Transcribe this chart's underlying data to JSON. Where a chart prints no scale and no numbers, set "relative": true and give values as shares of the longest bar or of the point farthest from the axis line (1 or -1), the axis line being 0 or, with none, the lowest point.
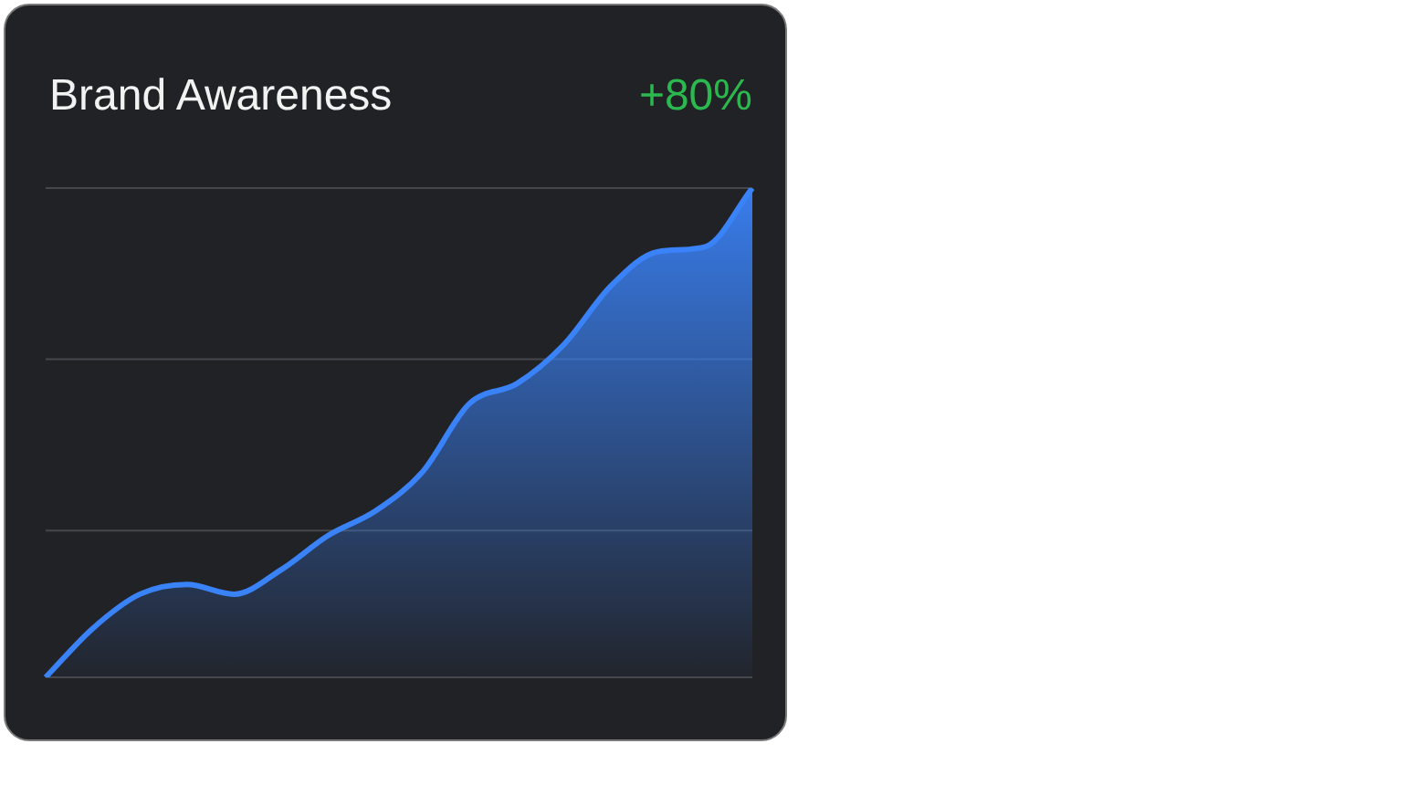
{
  "chart_data": {
    "type": "area",
    "title": "Brand Awareness",
    "annotations": [
      "+80%"
    ],
    "relative": true,
    "grid": "y",
    "ref_lines": [
      {
        "axis": "y",
        "value": 0.3,
        "color": "#45474c"
      },
      {
        "axis": "y",
        "value": 0.65,
        "color": "#45474c"
      }
    ],
    "categories": [
      null,
      null,
      null,
      null,
      null,
      null,
      null,
      null,
      null,
      null,
      null,
      null,
      null,
      null,
      null,
      null
    ],
    "series": [
      {
        "color": "#3a82f7",
        "values": [
          0,
          0.1,
          0.17,
          0.19,
          0.17,
          0.22,
          0.29,
          0.34,
          0.42,
          0.56,
          0.6,
          0.68,
          0.8,
          0.87,
          0.88,
          1
        ]
      }
    ]
  }
}
